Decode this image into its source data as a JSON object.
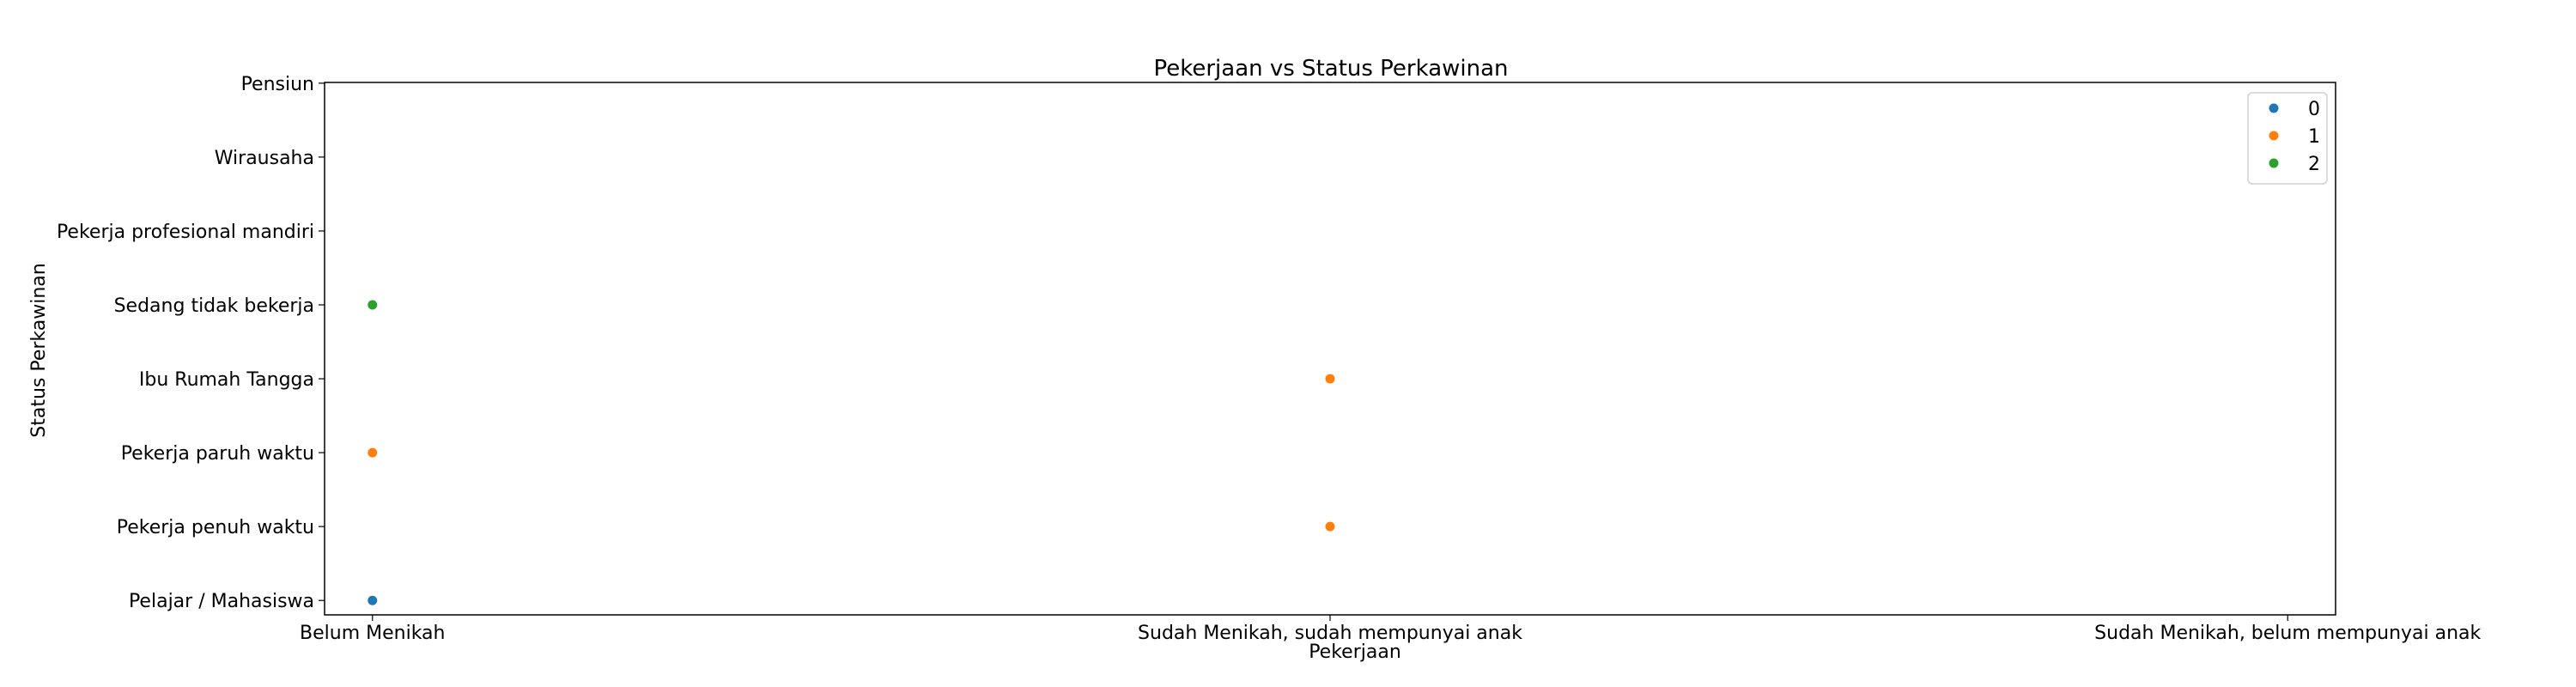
{
  "chart_data": {
    "type": "scatter",
    "title": "Pekerjaan vs Status Perkawinan",
    "xlabel": "Pekerjaan",
    "ylabel": "Status Perkawinan",
    "x_categories": [
      "Belum Menikah",
      "Sudah Menikah, sudah mempunyai anak",
      "Sudah Menikah, belum mempunyai anak"
    ],
    "y_categories": [
      "Pelajar / Mahasiswa",
      "Pekerja penuh waktu",
      "Pekerja paruh waktu",
      "Ibu Rumah Tangga",
      "Sedang tidak bekerja",
      "Pekerja profesional mandiri",
      "Wirausaha",
      "Pensiun"
    ],
    "series": [
      {
        "name": "0",
        "color": "#1f77b4",
        "points": [
          {
            "x": "Belum Menikah",
            "y": "Pelajar / Mahasiswa"
          }
        ]
      },
      {
        "name": "1",
        "color": "#ff7f0e",
        "points": [
          {
            "x": "Belum Menikah",
            "y": "Pekerja paruh waktu"
          },
          {
            "x": "Sudah Menikah, sudah mempunyai anak",
            "y": "Ibu Rumah Tangga"
          },
          {
            "x": "Sudah Menikah, sudah mempunyai anak",
            "y": "Pekerja penuh waktu"
          }
        ]
      },
      {
        "name": "2",
        "color": "#2ca02c",
        "points": [
          {
            "x": "Belum Menikah",
            "y": "Sedang tidak bekerja"
          }
        ]
      }
    ],
    "legend_position": "top-right",
    "grid": false
  }
}
